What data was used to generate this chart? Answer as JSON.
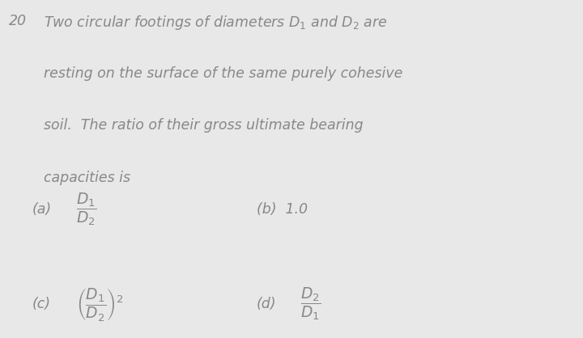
{
  "background_color": "#e8e8e8",
  "text_color": "#888888",
  "fig_width": 7.2,
  "fig_height": 4.18,
  "dpi": 100,
  "q_num": "20",
  "line1": "Two circular footings of diameters $D_1$ and $D_2$ are",
  "line2": "resting on the surface of the same purely cohesive",
  "line3": "soil.  The ratio of their gross ultimate bearing",
  "line4": "capacities is",
  "opt_a": "(a)",
  "math_a": "$\\dfrac{D_1}{D_2}$",
  "opt_b": "(b)  1.0",
  "opt_c": "(c)",
  "math_c": "$\\left(\\dfrac{D_1}{D_2}\\right)^2$",
  "opt_d": "(d)",
  "math_d": "$\\dfrac{D_2}{D_1}$"
}
